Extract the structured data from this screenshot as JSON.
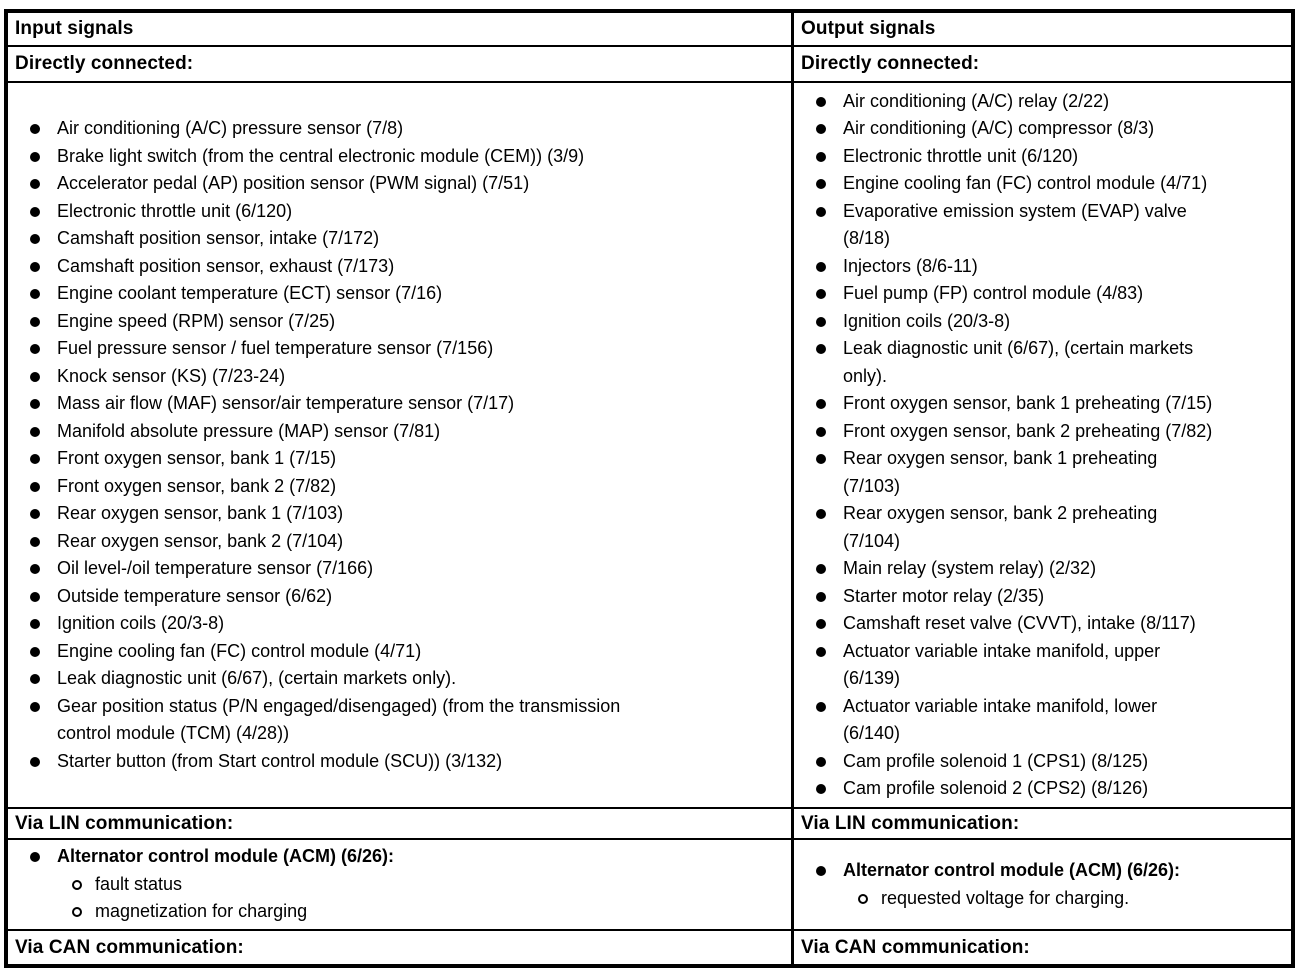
{
  "document": {
    "input": {
      "header": "Input signals",
      "sections": {
        "direct": {
          "title": "Directly connected:",
          "items": [
            "Air conditioning (A/C) pressure sensor (7/8)",
            "Brake light switch (from the central electronic module (CEM)) (3/9)",
            "Accelerator pedal (AP) position sensor (PWM signal) (7/51)",
            "Electronic throttle unit (6/120)",
            "Camshaft position sensor, intake (7/172)",
            "Camshaft position sensor, exhaust (7/173)",
            "Engine coolant temperature (ECT) sensor (7/16)",
            "Engine speed (RPM) sensor (7/25)",
            "Fuel pressure sensor / fuel temperature sensor (7/156)",
            "Knock sensor (KS) (7/23-24)",
            "Mass air flow (MAF) sensor/air temperature sensor (7/17)",
            "Manifold absolute pressure (MAP) sensor (7/81)",
            "Front oxygen sensor, bank 1 (7/15)",
            "Front oxygen sensor, bank 2 (7/82)",
            "Rear oxygen sensor, bank 1 (7/103)",
            "Rear oxygen sensor, bank 2 (7/104)",
            "Oil level-/oil temperature sensor (7/166)",
            "Outside temperature sensor (6/62)",
            "Ignition coils (20/3-8)",
            "Engine cooling fan (FC) control module (4/71)",
            "Leak diagnostic unit (6/67), (certain markets only).",
            "Gear position status (P/N engaged/disengaged) (from the transmission\ncontrol module (TCM) (4/28))",
            "Starter button (from Start control module (SCU)) (3/132)"
          ]
        },
        "lin": {
          "title": "Via LIN communication:",
          "items": [
            {
              "text": "Alternator control module (ACM) (6/26):",
              "bold": true,
              "sub": [
                "fault status",
                "magnetization for charging"
              ]
            }
          ]
        },
        "can": {
          "title": "Via CAN communication:"
        }
      }
    },
    "output": {
      "header": "Output signals",
      "sections": {
        "direct": {
          "title": "Directly connected:",
          "items": [
            "Air conditioning (A/C) relay (2/22)",
            "Air conditioning (A/C) compressor (8/3)",
            "Electronic throttle unit (6/120)",
            "Engine cooling fan (FC) control module (4/71)",
            "Evaporative emission system (EVAP) valve\n(8/18)",
            "Injectors (8/6-11)",
            "Fuel pump (FP) control module (4/83)",
            "Ignition coils (20/3-8)",
            "Leak diagnostic unit (6/67), (certain markets\nonly).",
            "Front oxygen sensor, bank 1 preheating (7/15)",
            "Front oxygen sensor, bank 2 preheating (7/82)",
            "Rear oxygen sensor, bank 1 preheating\n(7/103)",
            "Rear oxygen sensor, bank 2 preheating\n(7/104)",
            "Main relay (system relay) (2/32)",
            "Starter motor relay (2/35)",
            "Camshaft reset valve (CVVT), intake (8/117)",
            "Actuator variable intake manifold, upper\n(6/139)",
            "Actuator variable intake manifold, lower\n(6/140)",
            "Cam profile solenoid 1 (CPS1) (8/125)",
            "Cam profile solenoid 2 (CPS2) (8/126)"
          ]
        },
        "lin": {
          "title": "Via LIN communication:",
          "items": [
            {
              "text": "Alternator control module (ACM) (6/26):",
              "bold": true,
              "sub": [
                "requested voltage for charging."
              ]
            }
          ]
        },
        "can": {
          "title": "Via CAN communication:"
        }
      }
    }
  }
}
